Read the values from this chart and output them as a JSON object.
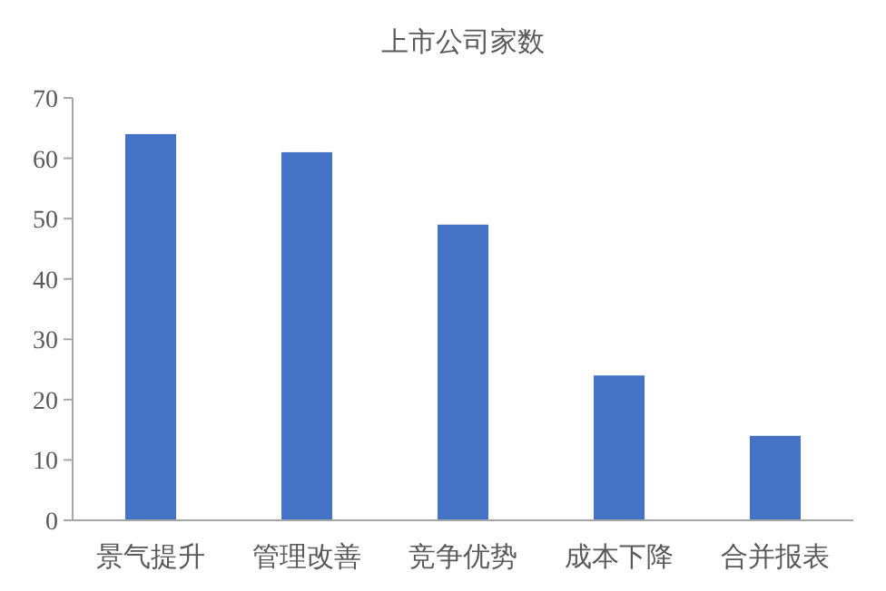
{
  "chart_data": {
    "type": "bar",
    "title": "上市公司家数",
    "categories": [
      "景气提升",
      "管理改善",
      "竞争优势",
      "成本下降",
      "合并报表"
    ],
    "values": [
      64,
      61,
      49,
      24,
      14
    ],
    "color": "#4472c4",
    "ylim": [
      0,
      70
    ],
    "yticks": [
      0,
      10,
      20,
      30,
      40,
      50,
      60,
      70
    ],
    "grid": false
  }
}
